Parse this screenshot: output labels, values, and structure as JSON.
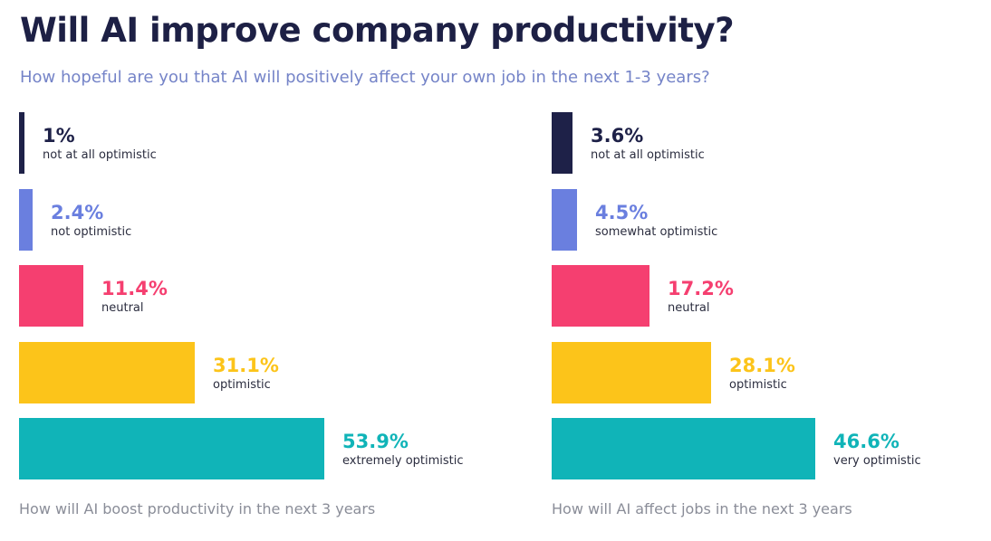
{
  "title": "Will AI improve company productivity?",
  "subtitle": "How hopeful are you that AI will positively affect your own job in the next 1-3 years?",
  "colors": {
    "title": "#1d2045",
    "subtitle": "#7584c8",
    "caption": "#8a8d98",
    "label": "#2b2d3f"
  },
  "chart_data": [
    {
      "type": "bar",
      "orientation": "horizontal",
      "title": "How will AI boost productivity in the next 3 years",
      "xlim": [
        0,
        100
      ],
      "unit": "%",
      "categories": [
        "not at all optimistic",
        "not optimistic",
        "neutral",
        "optimistic",
        "extremely optimistic"
      ],
      "values": [
        1,
        2.4,
        11.4,
        31.1,
        53.9
      ],
      "value_labels": [
        "1%",
        "2.4%",
        "11.4%",
        "31.1%",
        "53.9%"
      ],
      "colors": [
        "#1e2148",
        "#6a7fdf",
        "#f53f70",
        "#fcc41a",
        "#10b4b8"
      ],
      "value_label_colors": [
        "#1e2148",
        "#6a7fdf",
        "#f53f70",
        "#fcc41a",
        "#10b4b8"
      ]
    },
    {
      "type": "bar",
      "orientation": "horizontal",
      "title": "How will AI affect jobs in the next 3 years",
      "xlim": [
        0,
        100
      ],
      "unit": "%",
      "categories": [
        "not at all optimistic",
        "somewhat optimistic",
        "neutral",
        "optimistic",
        "very optimistic"
      ],
      "values": [
        3.6,
        4.5,
        17.2,
        28.1,
        46.6
      ],
      "value_labels": [
        "3.6%",
        "4.5%",
        "17.2%",
        "28.1%",
        "46.6%"
      ],
      "colors": [
        "#1e2148",
        "#6a7fdf",
        "#f53f70",
        "#fcc41a",
        "#10b4b8"
      ],
      "value_label_colors": [
        "#1e2148",
        "#6a7fdf",
        "#f53f70",
        "#fcc41a",
        "#10b4b8"
      ]
    }
  ]
}
